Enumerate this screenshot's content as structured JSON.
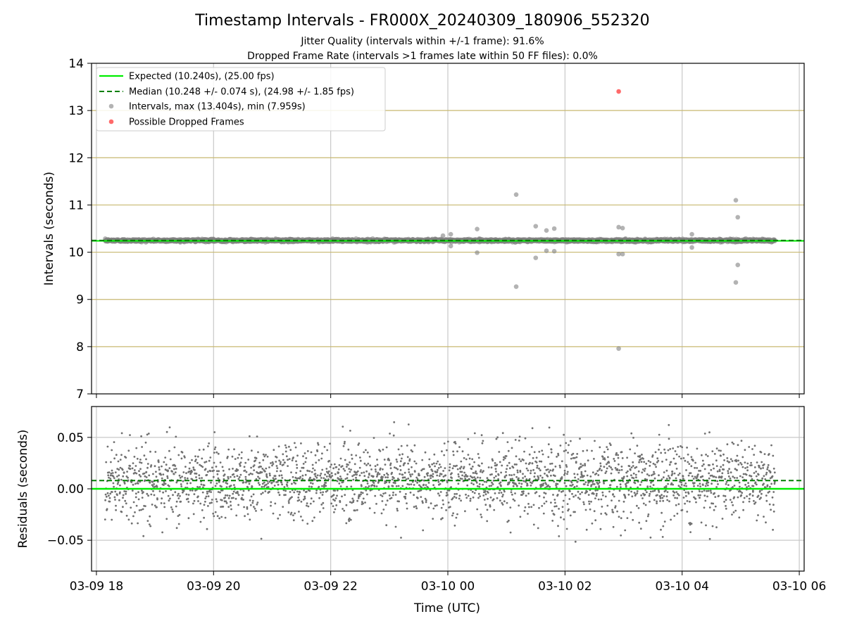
{
  "figure": {
    "title": "Timestamp Intervals - FR000X_20240309_180906_552320",
    "subtitle1": "Jitter Quality (intervals within +/-1 frame): 91.6%",
    "subtitle2": "Dropped Frame Rate (intervals >1 frames late within 50 FF files): 0.0%",
    "xlabel": "Time (UTC)"
  },
  "colors": {
    "expected": "#00ee00",
    "median": "#007f00",
    "intervals": "#808080",
    "dropped": "#ff5050",
    "frame_lines": "#c8b870",
    "grid": "#c8c8c8"
  },
  "chart_data": [
    {
      "type": "scatter",
      "panel": "intervals",
      "ylabel": "Intervals (seconds)",
      "ylim": [
        7,
        14
      ],
      "yticks": [
        7,
        8,
        9,
        10,
        11,
        12,
        13,
        14
      ],
      "x_axis": "time",
      "xlim": [
        "2024-03-09 17:55",
        "2024-03-10 06:05"
      ],
      "xticks": [
        "03-09 18",
        "03-09 20",
        "03-09 22",
        "03-10 00",
        "03-10 02",
        "03-10 04",
        "03-10 06"
      ],
      "xticks_time": [
        "2024-03-09 18:00",
        "2024-03-09 20:00",
        "2024-03-09 22:00",
        "2024-03-10 00:00",
        "2024-03-10 02:00",
        "2024-03-10 04:00",
        "2024-03-10 06:00"
      ],
      "grid": true,
      "legend": {
        "placement": "upper-left",
        "entries": [
          "Expected (10.240s), (25.00 fps)",
          "Median (10.248 +/- 0.074 s), (24.98 +/- 1.85 fps)",
          "Intervals, max (13.404s), min (7.959s)",
          "Possible Dropped Frames"
        ]
      },
      "expected": 10.24,
      "median": 10.248,
      "intervals_band": {
        "start": "2024-03-09 18:09",
        "end": "2024-03-10 05:35",
        "center": 10.248,
        "spread": 0.04
      },
      "intervals_outliers": [
        {
          "t": "2024-03-09 23:55",
          "y": 10.35
        },
        {
          "t": "2024-03-10 00:03",
          "y": 10.38
        },
        {
          "t": "2024-03-10 00:03",
          "y": 10.13
        },
        {
          "t": "2024-03-10 00:30",
          "y": 10.49
        },
        {
          "t": "2024-03-10 00:30",
          "y": 9.99
        },
        {
          "t": "2024-03-10 01:10",
          "y": 11.22
        },
        {
          "t": "2024-03-10 01:10",
          "y": 9.27
        },
        {
          "t": "2024-03-10 01:30",
          "y": 10.55
        },
        {
          "t": "2024-03-10 01:30",
          "y": 9.88
        },
        {
          "t": "2024-03-10 01:41",
          "y": 10.46
        },
        {
          "t": "2024-03-10 01:41",
          "y": 10.03
        },
        {
          "t": "2024-03-10 01:49",
          "y": 10.5
        },
        {
          "t": "2024-03-10 01:49",
          "y": 10.02
        },
        {
          "t": "2024-03-10 02:55",
          "y": 10.53
        },
        {
          "t": "2024-03-10 02:55",
          "y": 9.96
        },
        {
          "t": "2024-03-10 02:55",
          "y": 7.959
        },
        {
          "t": "2024-03-10 02:59",
          "y": 10.51
        },
        {
          "t": "2024-03-10 02:59",
          "y": 9.96
        },
        {
          "t": "2024-03-10 04:10",
          "y": 10.38
        },
        {
          "t": "2024-03-10 04:10",
          "y": 10.1
        },
        {
          "t": "2024-03-10 04:55",
          "y": 11.1
        },
        {
          "t": "2024-03-10 04:55",
          "y": 9.36
        },
        {
          "t": "2024-03-10 04:57",
          "y": 10.74
        },
        {
          "t": "2024-03-10 04:57",
          "y": 9.73
        }
      ],
      "dropped_frames": [
        {
          "t": "2024-03-10 02:55",
          "y": 13.404
        }
      ],
      "frame_lines": [
        8,
        9,
        10,
        11,
        12,
        13
      ]
    },
    {
      "type": "scatter",
      "panel": "residuals",
      "ylabel": "Residuals (seconds)",
      "ylim": [
        -0.08,
        0.08
      ],
      "yticks": [
        -0.05,
        0.0,
        0.05
      ],
      "ytick_labels": [
        "−0.05",
        "0.00",
        "0.05"
      ],
      "grid": true,
      "expected_residual": 0.0,
      "median_residual": 0.008,
      "residuals_band": {
        "start": "2024-03-09 18:09",
        "end": "2024-03-10 05:35",
        "center": 0.008,
        "spread": 0.03,
        "range": [
          -0.08,
          0.08
        ]
      }
    }
  ]
}
